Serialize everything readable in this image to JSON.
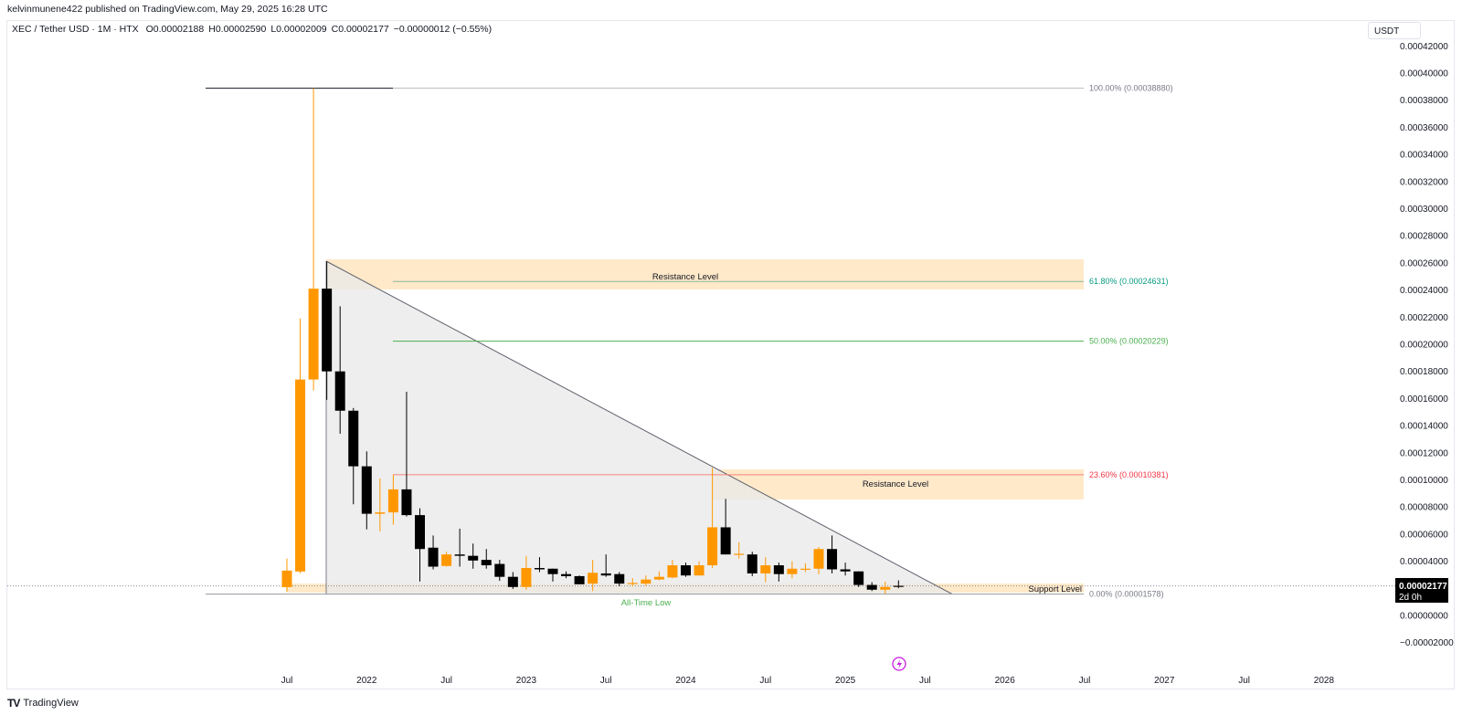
{
  "header": {
    "published": "kelvinmunene422 published on TradingView.com, May 29, 2025 16:28 UTC"
  },
  "legend": {
    "symbol": "XEC / Tether USD · 1M · HTX",
    "open": "O0.00002188",
    "high": "H0.00002590",
    "low": "L0.00002009",
    "close": "C0.00002177",
    "change": "−0.00000012 (−0.55%)"
  },
  "price_axis": {
    "currency": "USDT",
    "current_price": "0.00002177",
    "countdown": "2d 0h"
  },
  "branding": {
    "logo": "TradingView"
  },
  "colors": {
    "up": "#ff9800",
    "down": "#000000",
    "zone": "#ffe9c9",
    "triangle": "#e8e8e8",
    "fib_100": "#787b86",
    "fib_618": "#089981",
    "fib_50": "#4caf50",
    "fib_236": "#f23645",
    "fib_0": "#787b86",
    "ath_label": "#4caf50"
  },
  "chart_data": {
    "type": "candlestick",
    "interval": "1M",
    "candles": [
      {
        "t": "2021-07",
        "o": 2.09e-05,
        "h": 4.19e-05,
        "l": 1.76e-05,
        "c": 3.31e-05
      },
      {
        "t": "2021-08",
        "o": 3.24e-05,
        "h": 0.000219,
        "l": 3.11e-05,
        "c": 0.000174
      },
      {
        "t": "2021-09",
        "o": 0.000174,
        "h": 0.0003888,
        "l": 0.000166,
        "c": 0.000241
      },
      {
        "t": "2021-10",
        "o": 0.000241,
        "h": 0.000261,
        "l": 0.000159,
        "c": 0.00018
      },
      {
        "t": "2021-11",
        "o": 0.00018,
        "h": 0.000228,
        "l": 0.000134,
        "c": 0.000151
      },
      {
        "t": "2021-12",
        "o": 0.000151,
        "h": 0.000153,
        "l": 8.2e-05,
        "c": 0.00011
      },
      {
        "t": "2022-01",
        "o": 0.00011,
        "h": 0.000121,
        "l": 6.35e-05,
        "c": 7.5e-05
      },
      {
        "t": "2022-02",
        "o": 7.5e-05,
        "h": 0.000101,
        "l": 6.2e-05,
        "c": 7.6e-05
      },
      {
        "t": "2022-03",
        "o": 7.6e-05,
        "h": 0.000104,
        "l": 6.7e-05,
        "c": 9.3e-05
      },
      {
        "t": "2022-04",
        "o": 9.3e-05,
        "h": 0.000165,
        "l": 7.3e-05,
        "c": 7.4e-05
      },
      {
        "t": "2022-05",
        "o": 7.4e-05,
        "h": 7.9e-05,
        "l": 2.5e-05,
        "c": 4.9e-05
      },
      {
        "t": "2022-06",
        "o": 5e-05,
        "h": 5.9e-05,
        "l": 3.4e-05,
        "c": 3.6e-05
      },
      {
        "t": "2022-07",
        "o": 3.65e-05,
        "h": 4.7e-05,
        "l": 3.6e-05,
        "c": 4.5e-05
      },
      {
        "t": "2022-08",
        "o": 4.5e-05,
        "h": 6.4e-05,
        "l": 3.6e-05,
        "c": 4.4e-05
      },
      {
        "t": "2022-09",
        "o": 4.4e-05,
        "h": 5.3e-05,
        "l": 3.45e-05,
        "c": 4.05e-05
      },
      {
        "t": "2022-10",
        "o": 4.1e-05,
        "h": 4.9e-05,
        "l": 3.45e-05,
        "c": 3.7e-05
      },
      {
        "t": "2022-11",
        "o": 3.8e-05,
        "h": 4.1e-05,
        "l": 2.55e-05,
        "c": 2.85e-05
      },
      {
        "t": "2022-12",
        "o": 2.85e-05,
        "h": 3.2e-05,
        "l": 1.96e-05,
        "c": 2.1e-05
      },
      {
        "t": "2023-01",
        "o": 2.1e-05,
        "h": 4.4e-05,
        "l": 1.9e-05,
        "c": 3.5e-05
      },
      {
        "t": "2023-02",
        "o": 3.5e-05,
        "h": 4.3e-05,
        "l": 3.2e-05,
        "c": 3.4e-05
      },
      {
        "t": "2023-03",
        "o": 3.45e-05,
        "h": 3.45e-05,
        "l": 2.5e-05,
        "c": 3.05e-05
      },
      {
        "t": "2023-04",
        "o": 3.05e-05,
        "h": 3.25e-05,
        "l": 2.75e-05,
        "c": 2.9e-05
      },
      {
        "t": "2023-05",
        "o": 2.9e-05,
        "h": 2.95e-05,
        "l": 2.3e-05,
        "c": 2.3e-05
      },
      {
        "t": "2023-06",
        "o": 2.35e-05,
        "h": 4.1e-05,
        "l": 1.8e-05,
        "c": 3.15e-05
      },
      {
        "t": "2023-07",
        "o": 3.1e-05,
        "h": 4.5e-05,
        "l": 2.85e-05,
        "c": 2.95e-05
      },
      {
        "t": "2023-08",
        "o": 3.05e-05,
        "h": 3.2e-05,
        "l": 2.15e-05,
        "c": 2.35e-05
      },
      {
        "t": "2023-09",
        "o": 2.35e-05,
        "h": 2.75e-05,
        "l": 2.15e-05,
        "c": 2.4e-05
      },
      {
        "t": "2023-10",
        "o": 2.35e-05,
        "h": 2.95e-05,
        "l": 2.2e-05,
        "c": 2.65e-05
      },
      {
        "t": "2023-11",
        "o": 2.65e-05,
        "h": 3.25e-05,
        "l": 2.6e-05,
        "c": 2.85e-05
      },
      {
        "t": "2023-12",
        "o": 2.8e-05,
        "h": 4.1e-05,
        "l": 2.75e-05,
        "c": 3.7e-05
      },
      {
        "t": "2024-01",
        "o": 3.7e-05,
        "h": 3.9e-05,
        "l": 2.85e-05,
        "c": 2.95e-05
      },
      {
        "t": "2024-02",
        "o": 2.95e-05,
        "h": 4e-05,
        "l": 2.95e-05,
        "c": 3.7e-05
      },
      {
        "t": "2024-03",
        "o": 3.7e-05,
        "h": 0.000109,
        "l": 3.5e-05,
        "c": 6.5e-05
      },
      {
        "t": "2024-04",
        "o": 6.5e-05,
        "h": 8.6e-05,
        "l": 4.5e-05,
        "c": 4.5e-05
      },
      {
        "t": "2024-05",
        "o": 4.5e-05,
        "h": 5.4e-05,
        "l": 4.2e-05,
        "c": 4.55e-05
      },
      {
        "t": "2024-06",
        "o": 4.5e-05,
        "h": 4.7e-05,
        "l": 2.9e-05,
        "c": 3.1e-05
      },
      {
        "t": "2024-07",
        "o": 3.1e-05,
        "h": 4.3e-05,
        "l": 2.45e-05,
        "c": 3.7e-05
      },
      {
        "t": "2024-08",
        "o": 3.7e-05,
        "h": 3.9e-05,
        "l": 2.5e-05,
        "c": 3.05e-05
      },
      {
        "t": "2024-09",
        "o": 3.05e-05,
        "h": 4e-05,
        "l": 2.75e-05,
        "c": 3.45e-05
      },
      {
        "t": "2024-10",
        "o": 3.45e-05,
        "h": 3.85e-05,
        "l": 3.2e-05,
        "c": 3.45e-05
      },
      {
        "t": "2024-11",
        "o": 3.45e-05,
        "h": 5.05e-05,
        "l": 3.05e-05,
        "c": 4.9e-05
      },
      {
        "t": "2024-12",
        "o": 4.9e-05,
        "h": 5.9e-05,
        "l": 3.1e-05,
        "c": 3.4e-05
      },
      {
        "t": "2025-01",
        "o": 3.4e-05,
        "h": 3.9e-05,
        "l": 2.95e-05,
        "c": 3.25e-05
      },
      {
        "t": "2025-02",
        "o": 3.25e-05,
        "h": 3.25e-05,
        "l": 2.1e-05,
        "c": 2.25e-05
      },
      {
        "t": "2025-03",
        "o": 2.25e-05,
        "h": 2.45e-05,
        "l": 1.8e-05,
        "c": 1.9e-05
      },
      {
        "t": "2025-04",
        "o": 1.9e-05,
        "h": 2.5e-05,
        "l": 1.6e-05,
        "c": 2.1e-05
      },
      {
        "t": "2025-05",
        "o": 2.188e-05,
        "h": 2.59e-05,
        "l": 2.009e-05,
        "c": 2.177e-05
      }
    ],
    "y_ticks": [
      "0.00042000",
      "0.00040000",
      "0.00038000",
      "0.00036000",
      "0.00034000",
      "0.00032000",
      "0.00030000",
      "0.00028000",
      "0.00026000",
      "0.00024000",
      "0.00022000",
      "0.00020000",
      "0.00018000",
      "0.00016000",
      "0.00014000",
      "0.00012000",
      "0.00010000",
      "0.00008000",
      "0.00006000",
      "0.00004000",
      "0.00000000",
      "−0.00002000"
    ],
    "ylim": [
      -2e-05,
      0.00042
    ],
    "x_ticks": [
      {
        "label": "Jul",
        "t": "2021-07"
      },
      {
        "label": "2022",
        "t": "2022-01"
      },
      {
        "label": "Jul",
        "t": "2022-07"
      },
      {
        "label": "2023",
        "t": "2023-01"
      },
      {
        "label": "Jul",
        "t": "2023-07"
      },
      {
        "label": "2024",
        "t": "2024-01"
      },
      {
        "label": "Jul",
        "t": "2024-07"
      },
      {
        "label": "2025",
        "t": "2025-01"
      },
      {
        "label": "Jul",
        "t": "2025-07"
      },
      {
        "label": "2026",
        "t": "2026-01"
      },
      {
        "label": "Jul",
        "t": "2026-07"
      },
      {
        "label": "2027",
        "t": "2027-01"
      },
      {
        "label": "Jul",
        "t": "2027-07"
      },
      {
        "label": "2028",
        "t": "2028-01"
      }
    ],
    "fib_levels": [
      {
        "label": "100.00% (0.00038880)",
        "price": 0.0003888,
        "color": "#787b86"
      },
      {
        "label": "61.80% (0.00024631)",
        "price": 0.00024631,
        "color": "#089981"
      },
      {
        "label": "50.00% (0.00020229)",
        "price": 0.00020229,
        "color": "#4caf50"
      },
      {
        "label": "23.60% (0.00010381)",
        "price": 0.00010381,
        "color": "#f23645"
      },
      {
        "label": "0.00% (0.00001578)",
        "price": 1.578e-05,
        "color": "#787b86"
      }
    ],
    "annotations": {
      "resistance_upper": "Resistance Level",
      "resistance_lower": "Resistance Level",
      "support": "Support Level",
      "all_time_low": "All-Time Low"
    },
    "grid": false,
    "legend": "top-left"
  }
}
